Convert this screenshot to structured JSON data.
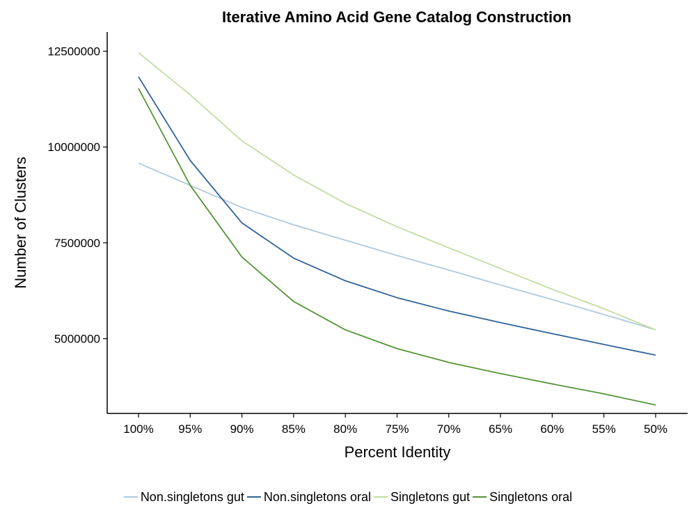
{
  "chart_data": {
    "type": "line",
    "title": "Iterative Amino Acid Gene Catalog Construction",
    "xlabel": "Percent Identity",
    "ylabel": "Number of Clusters",
    "categories": [
      "100%",
      "95%",
      "90%",
      "85%",
      "80%",
      "75%",
      "70%",
      "65%",
      "60%",
      "55%",
      "50%"
    ],
    "y_ticks": [
      5000000,
      7500000,
      10000000,
      12500000
    ],
    "y_tick_labels": [
      "5000000",
      "7500000",
      "10000000",
      "12500000"
    ],
    "ylim": [
      3050000,
      13000000
    ],
    "grid": false,
    "legend_position": "bottom",
    "series": [
      {
        "name": "Non.singletons gut",
        "color": "#afc9dc",
        "values": [
          9580000,
          9000000,
          8420000,
          7970000,
          7570000,
          7170000,
          6790000,
          6400000,
          6020000,
          5630000,
          5230000
        ]
      },
      {
        "name": "Non.singletons oral",
        "color": "#2f639a",
        "values": [
          11830000,
          9650000,
          8020000,
          7100000,
          6510000,
          6070000,
          5720000,
          5420000,
          5130000,
          4850000,
          4570000
        ]
      },
      {
        "name": "Singletons gut",
        "color": "#c3dca1",
        "values": [
          12460000,
          11360000,
          10160000,
          9270000,
          8530000,
          7920000,
          7370000,
          6830000,
          6290000,
          5780000,
          5230000
        ]
      },
      {
        "name": "Singletons oral",
        "color": "#549535",
        "values": [
          11530000,
          9000000,
          7130000,
          5970000,
          5230000,
          4740000,
          4380000,
          4090000,
          3820000,
          3560000,
          3270000
        ]
      }
    ]
  }
}
